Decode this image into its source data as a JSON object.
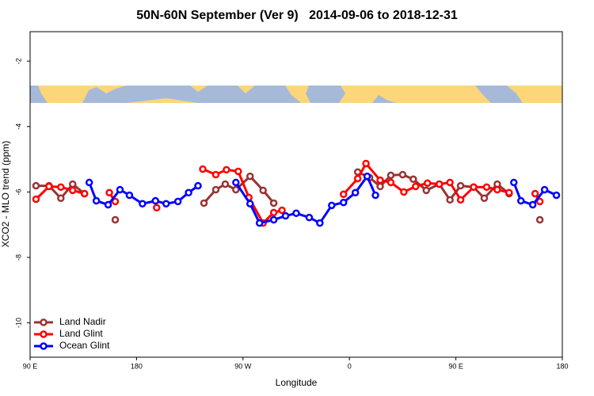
{
  "chart_data": {
    "type": "line",
    "title": "50N-60N September (Ver 9)   2014-09-06 to 2018-12-31",
    "x_label": "Longitude",
    "y_label": "XCO2 - MLO trend (ppm)",
    "xlim": [
      90,
      540
    ],
    "ylim": [
      -11.05,
      -1.1
    ],
    "xticks": [
      {
        "value": 90,
        "label": "90 E"
      },
      180,
      {
        "value": 270,
        "label": "90 W"
      },
      {
        "value": 360,
        "label": "0"
      },
      {
        "value": 450,
        "label": "90 E"
      },
      {
        "value": 540,
        "label": "180"
      }
    ],
    "yticks": [
      -2,
      -4,
      -6,
      -8,
      -10
    ],
    "legend": "bottom-left",
    "series": [
      {
        "name": "Land Nadir",
        "color": "#993333",
        "x": [
          95,
          106,
          116,
          126,
          136,
          null,
          162,
          null,
          237,
          247,
          255,
          264,
          276,
          287,
          296,
          null,
          367,
          377,
          386,
          395,
          405,
          414,
          425,
          436,
          445,
          454,
          465,
          474,
          485,
          495,
          null,
          521
        ],
        "values": [
          -5.81,
          -5.81,
          -6.19,
          -5.76,
          -6.05,
          null,
          -6.85,
          null,
          -6.34,
          -5.93,
          -5.76,
          -5.93,
          -5.52,
          -5.95,
          -6.34,
          null,
          -5.39,
          -5.56,
          -5.83,
          -5.49,
          -5.47,
          -5.61,
          -5.95,
          -5.76,
          -6.24,
          -5.81,
          -5.85,
          -6.19,
          -5.76,
          -6.05,
          null,
          -6.85
        ]
      },
      {
        "name": "Land Glint",
        "color": "#ff0000",
        "x": [
          95,
          106,
          116,
          126,
          136,
          null,
          157,
          162,
          null,
          197,
          null,
          236,
          247,
          256,
          266,
          275,
          287,
          296,
          303,
          null,
          355,
          367,
          374,
          386,
          395,
          406,
          416,
          426,
          436,
          445,
          454,
          465,
          476,
          485,
          495,
          null,
          517,
          521
        ],
        "values": [
          -6.22,
          -5.83,
          -5.85,
          -5.95,
          -6.05,
          null,
          -6.02,
          -6.29,
          null,
          -6.48,
          null,
          -5.3,
          -5.47,
          -5.32,
          -5.37,
          -6.17,
          -6.95,
          -6.63,
          -6.56,
          null,
          -6.07,
          -5.59,
          -5.13,
          -5.64,
          -5.71,
          -6.0,
          -5.83,
          -5.73,
          -5.76,
          -5.71,
          -6.24,
          -5.85,
          -5.85,
          -5.93,
          -6.02,
          null,
          -6.05,
          -6.29
        ]
      },
      {
        "name": "Ocean Glint",
        "color": "#0000ff",
        "x": [
          140,
          146,
          156,
          166,
          174,
          185,
          196,
          205,
          215,
          224,
          232,
          null,
          264,
          276,
          284,
          296,
          306,
          315,
          326,
          335,
          345,
          355,
          365,
          375,
          382,
          null,
          499,
          505,
          515,
          525,
          535
        ],
        "values": [
          -5.71,
          -6.27,
          -6.39,
          -5.93,
          -6.1,
          -6.36,
          -6.27,
          -6.36,
          -6.29,
          -6.02,
          -5.81,
          null,
          -5.71,
          -6.36,
          -6.95,
          -6.85,
          -6.73,
          -6.65,
          -6.78,
          -6.95,
          -6.41,
          -6.32,
          -6.02,
          -5.52,
          -6.1,
          null,
          -5.71,
          -6.27,
          -6.39,
          -5.93,
          -6.1
        ]
      }
    ]
  }
}
